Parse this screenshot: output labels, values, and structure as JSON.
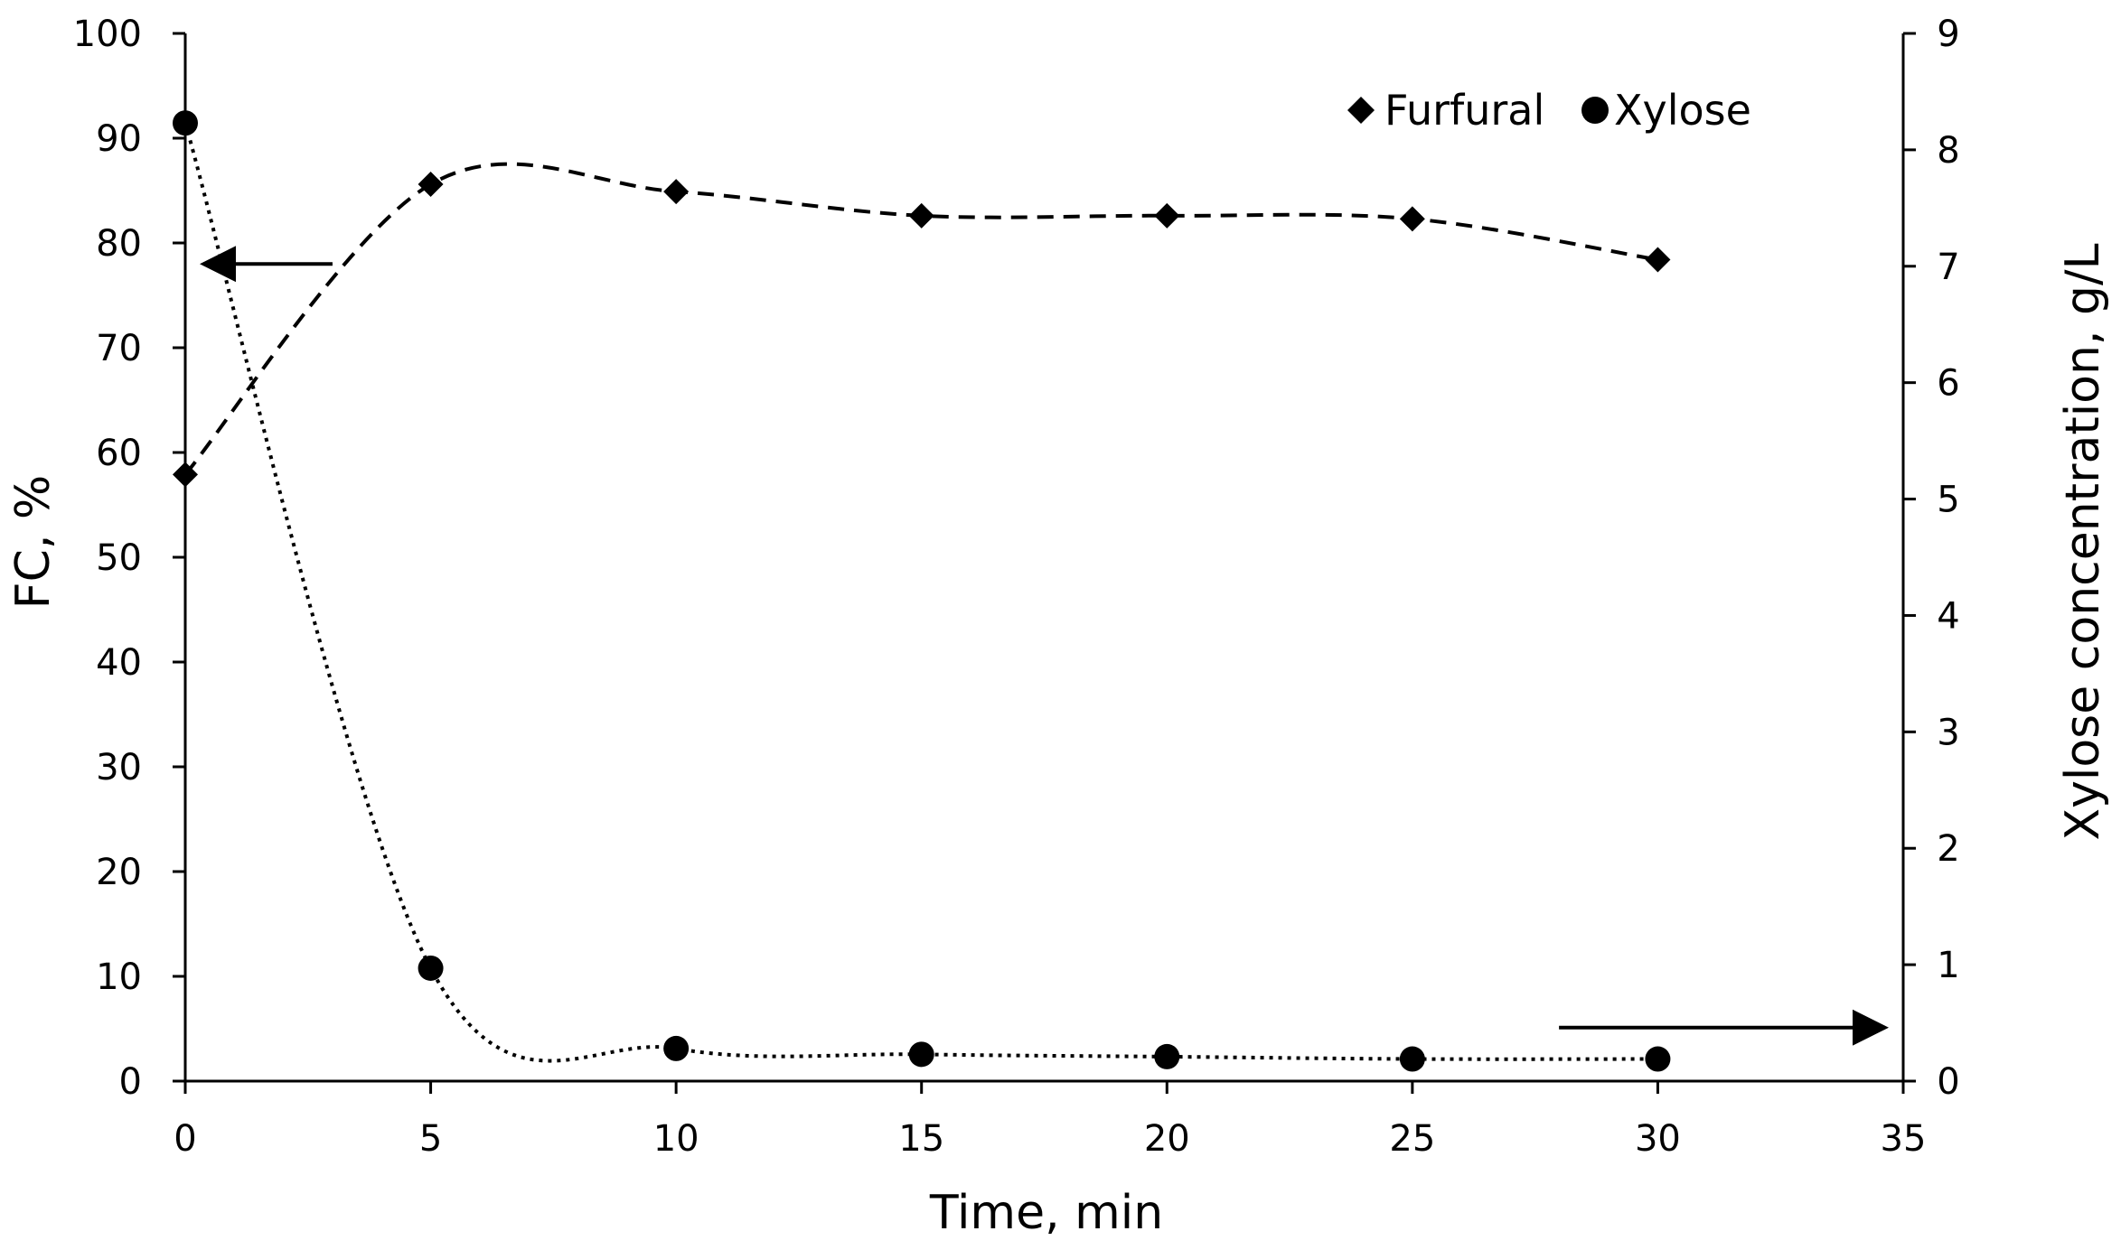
{
  "chart_data": {
    "type": "scatter",
    "title": "",
    "xlabel": "Time, min",
    "ylabel_left": "FC, %",
    "ylabel_right": "Xylose concentration, g/L",
    "xlim": [
      0,
      35
    ],
    "ylim_left": [
      0,
      100
    ],
    "ylim_right": [
      0,
      9
    ],
    "x_ticks": [
      "0",
      "5",
      "10",
      "15",
      "20",
      "25",
      "30",
      "35"
    ],
    "y_left_ticks": [
      "0",
      "10",
      "20",
      "30",
      "40",
      "50",
      "60",
      "70",
      "80",
      "90",
      "100"
    ],
    "y_right_ticks": [
      "0",
      "1",
      "2",
      "3",
      "4",
      "5",
      "6",
      "7",
      "8",
      "9"
    ],
    "grid": false,
    "legend_position": "top-right",
    "series": [
      {
        "name": "Furfural",
        "axis": "left",
        "marker": "diamond",
        "line": "dashed",
        "x": [
          0,
          5,
          10,
          15,
          20,
          25,
          30
        ],
        "y": [
          57.9,
          85.6,
          84.9,
          82.6,
          82.6,
          82.3,
          78.4
        ]
      },
      {
        "name": "Xylose",
        "axis": "right",
        "marker": "circle",
        "line": "dotted",
        "x": [
          0,
          5,
          10,
          15,
          20,
          25,
          30
        ],
        "y": [
          8.23,
          0.97,
          0.28,
          0.23,
          0.21,
          0.19,
          0.19
        ]
      }
    ],
    "annotations": [
      {
        "type": "arrow",
        "points_to": "left-axis",
        "near_x": 3,
        "near_y": 78
      },
      {
        "type": "arrow",
        "points_to": "right-axis",
        "near_x": 29,
        "near_y_right": 0.46
      }
    ]
  }
}
